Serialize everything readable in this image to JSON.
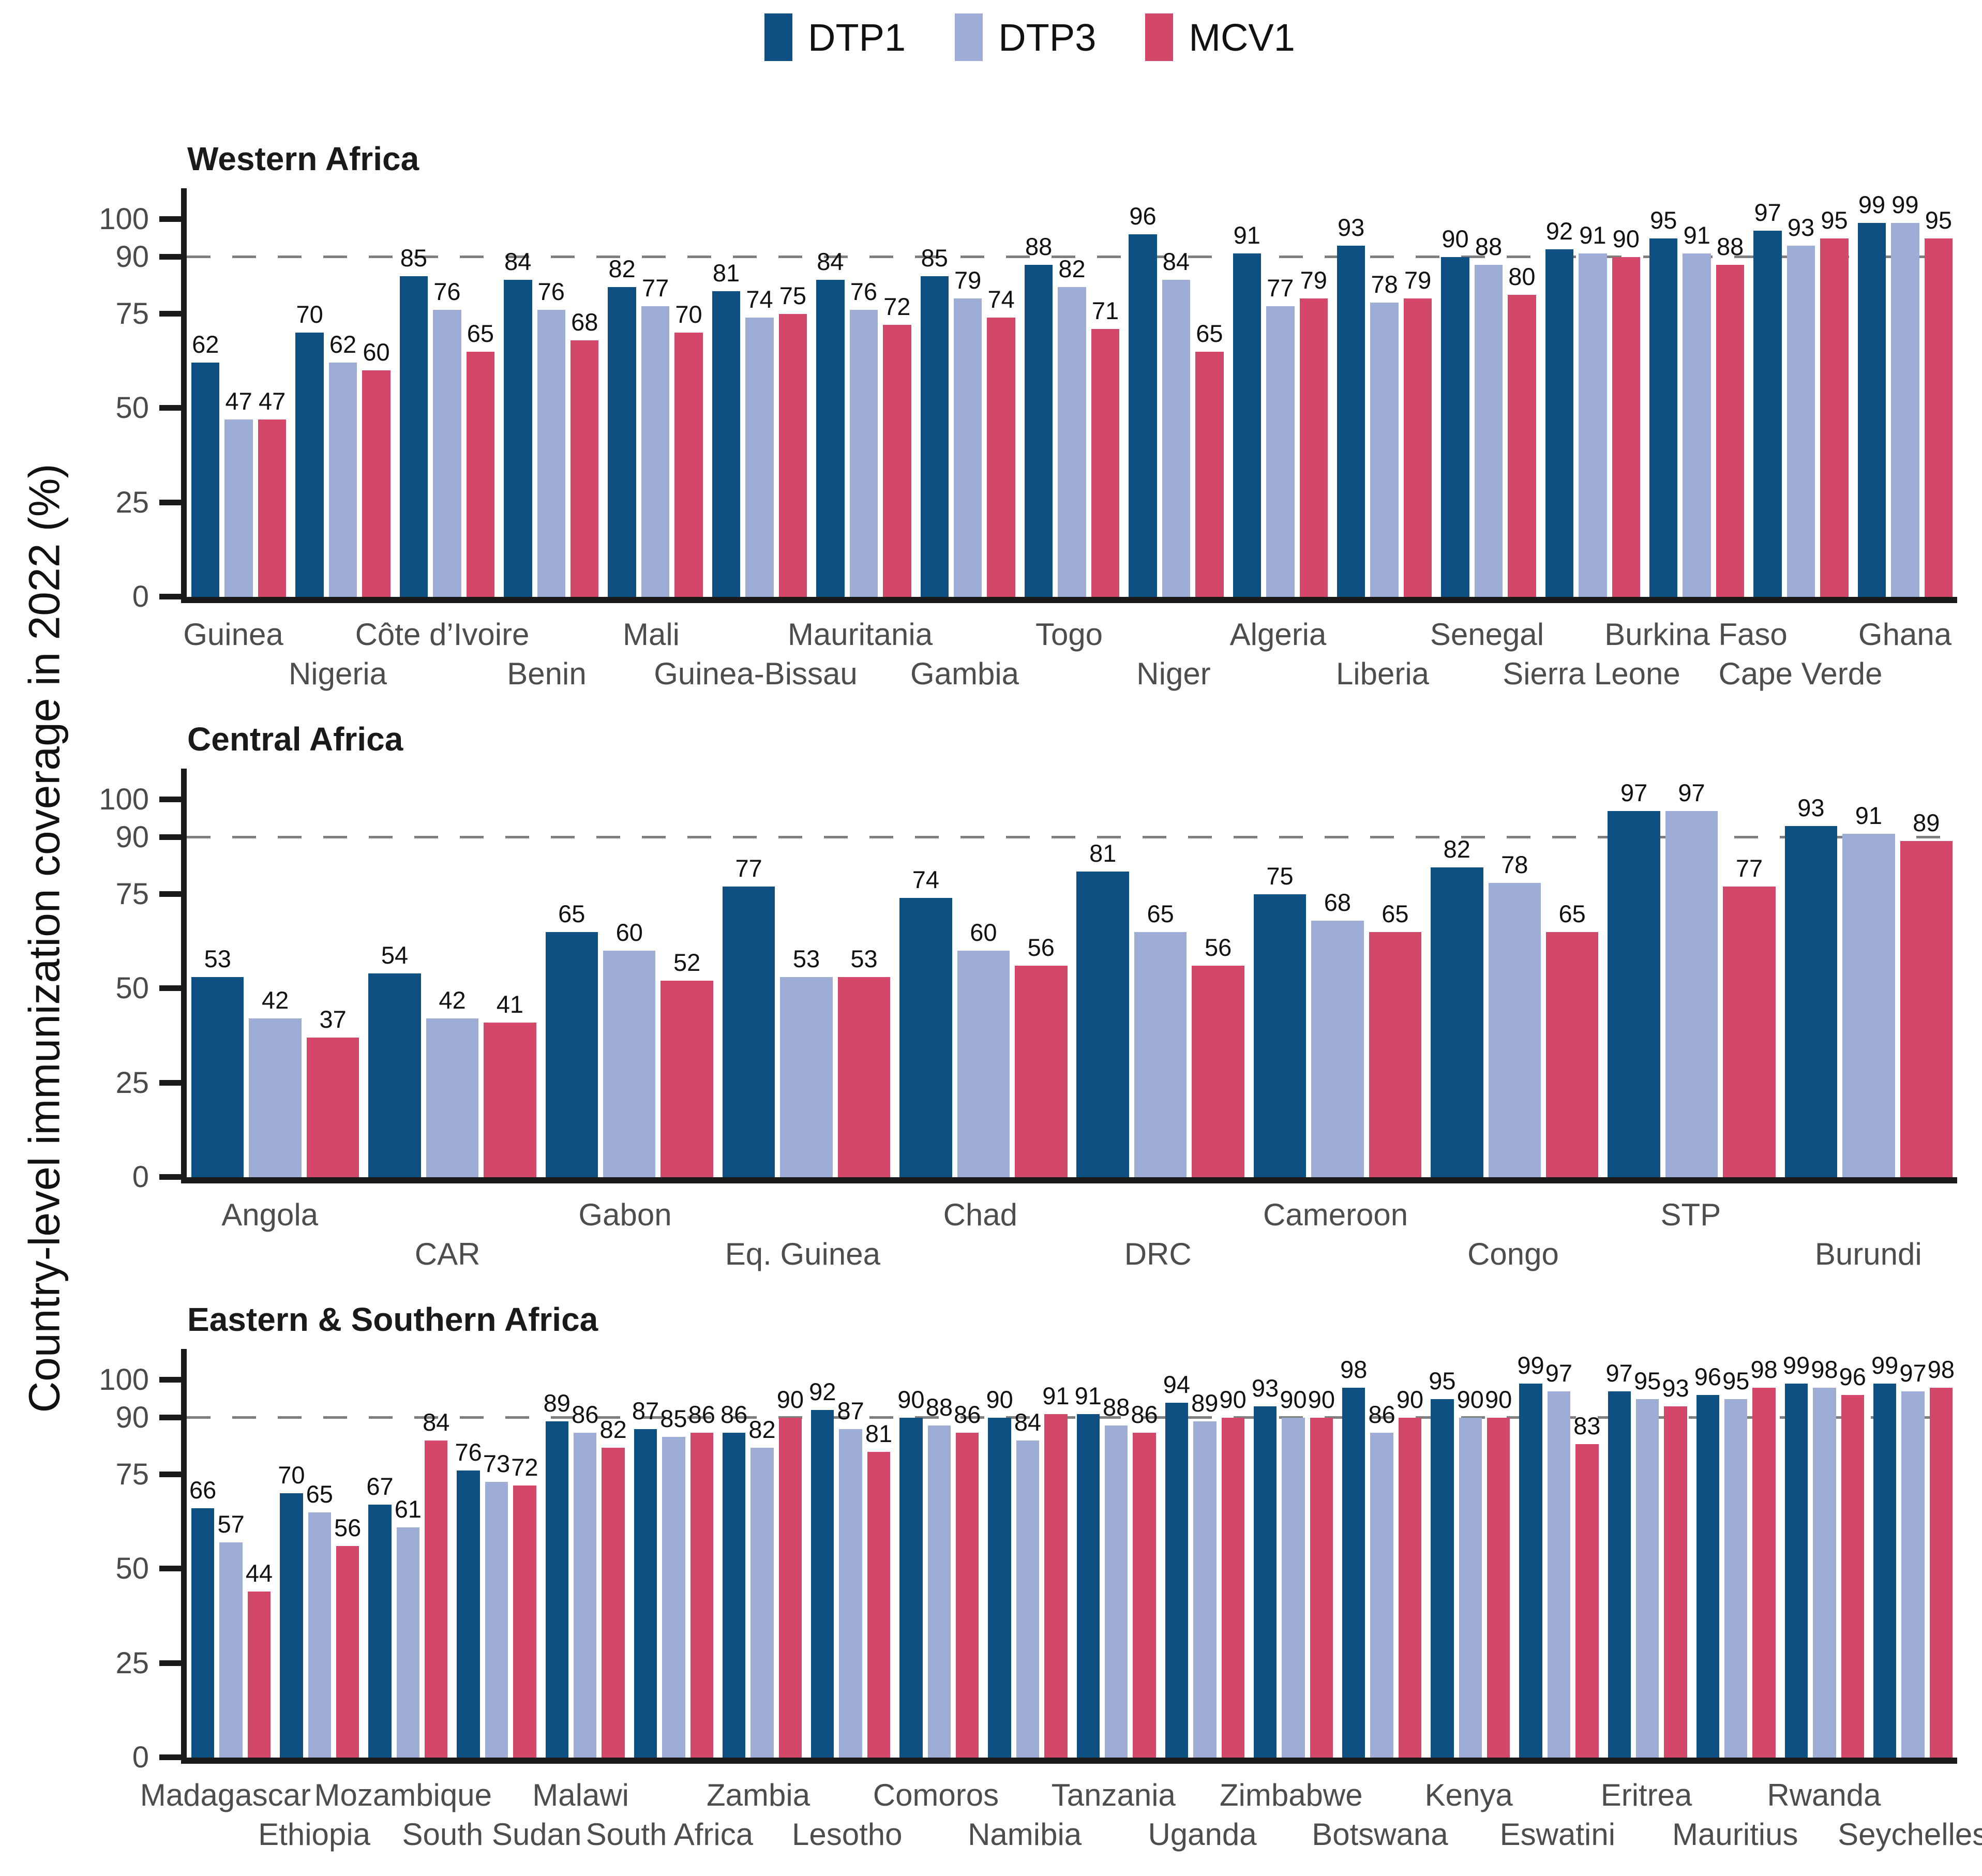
{
  "figure": {
    "y_axis_title": "Country-level immunization coverage in 2022 (%)"
  },
  "legend": {
    "items": [
      {
        "label": "DTP1",
        "color": "#0e5081"
      },
      {
        "label": "DTP3",
        "color": "#9dadd6"
      },
      {
        "label": "MCV1",
        "color": "#d34769"
      }
    ]
  },
  "colors": {
    "dtp1": "#0e5081",
    "dtp3": "#9dadd6",
    "mcv1": "#d34769",
    "axis": "#1a1a1a",
    "tick_text": "#4a4a4a",
    "category_text": "#4d4d4d",
    "dashed_gridline": "#7f7f7f"
  },
  "chart_data": [
    {
      "type": "bar",
      "title": "Western Africa",
      "ylabel": "Country-level immunization coverage in 2022 (%)",
      "ylim": [
        0,
        100
      ],
      "yticks": [
        0,
        25,
        50,
        75,
        90,
        100
      ],
      "dashed_gridline_y": 90,
      "grid": false,
      "legend_position": "top-center",
      "categories": [
        "Guinea",
        "Nigeria",
        "Côte d’Ivoire",
        "Benin",
        "Mali",
        "Guinea-Bissau",
        "Mauritania",
        "Gambia",
        "Togo",
        "Niger",
        "Algeria",
        "Liberia",
        "Senegal",
        "Sierra Leone",
        "Burkina Faso",
        "Cape Verde",
        "Ghana"
      ],
      "series": [
        {
          "name": "DTP1",
          "color": "#0e5081",
          "values": [
            62,
            70,
            85,
            84,
            82,
            81,
            84,
            85,
            88,
            96,
            91,
            93,
            90,
            92,
            95,
            97,
            99
          ]
        },
        {
          "name": "DTP3",
          "color": "#9dadd6",
          "values": [
            47,
            62,
            76,
            76,
            77,
            74,
            76,
            79,
            82,
            84,
            77,
            78,
            88,
            91,
            91,
            93,
            99
          ]
        },
        {
          "name": "MCV1",
          "color": "#d34769",
          "values": [
            47,
            60,
            65,
            68,
            70,
            75,
            72,
            74,
            71,
            65,
            79,
            79,
            80,
            90,
            88,
            95,
            95
          ]
        }
      ]
    },
    {
      "type": "bar",
      "title": "Central Africa",
      "ylabel": "Country-level immunization coverage in 2022 (%)",
      "ylim": [
        0,
        100
      ],
      "yticks": [
        0,
        25,
        50,
        75,
        90,
        100
      ],
      "dashed_gridline_y": 90,
      "grid": false,
      "categories": [
        "Angola",
        "CAR",
        "Gabon",
        "Eq. Guinea",
        "Chad",
        "DRC",
        "Cameroon",
        "Congo",
        "STP",
        "Burundi"
      ],
      "series": [
        {
          "name": "DTP1",
          "color": "#0e5081",
          "values": [
            53,
            54,
            65,
            77,
            74,
            81,
            75,
            82,
            97,
            93
          ]
        },
        {
          "name": "DTP3",
          "color": "#9dadd6",
          "values": [
            42,
            42,
            60,
            53,
            60,
            65,
            68,
            78,
            97,
            91
          ]
        },
        {
          "name": "MCV1",
          "color": "#d34769",
          "values": [
            37,
            41,
            52,
            53,
            56,
            56,
            65,
            65,
            77,
            89
          ]
        }
      ]
    },
    {
      "type": "bar",
      "title": "Eastern & Southern Africa",
      "ylabel": "Country-level immunization coverage in 2022 (%)",
      "ylim": [
        0,
        100
      ],
      "yticks": [
        0,
        25,
        50,
        75,
        90,
        100
      ],
      "dashed_gridline_y": 90,
      "grid": false,
      "categories": [
        "Madagascar",
        "Ethiopia",
        "Mozambique",
        "South Sudan",
        "Malawi",
        "South Africa",
        "Zambia",
        "Lesotho",
        "Comoros",
        "Namibia",
        "Tanzania",
        "Uganda",
        "Zimbabwe",
        "Botswana",
        "Kenya",
        "Eswatini",
        "Eritrea",
        "Mauritius",
        "Rwanda",
        "Seychelles"
      ],
      "series": [
        {
          "name": "DTP1",
          "color": "#0e5081",
          "values": [
            66,
            70,
            67,
            76,
            89,
            87,
            86,
            92,
            90,
            90,
            91,
            94,
            93,
            98,
            95,
            99,
            97,
            96,
            99,
            99
          ]
        },
        {
          "name": "DTP3",
          "color": "#9dadd6",
          "values": [
            57,
            65,
            61,
            73,
            86,
            85,
            82,
            87,
            88,
            84,
            88,
            89,
            90,
            86,
            90,
            97,
            95,
            95,
            98,
            97
          ]
        },
        {
          "name": "MCV1",
          "color": "#d34769",
          "values": [
            44,
            56,
            84,
            72,
            82,
            86,
            90,
            81,
            86,
            91,
            86,
            90,
            90,
            90,
            90,
            83,
            93,
            98,
            96,
            98
          ]
        }
      ]
    }
  ]
}
